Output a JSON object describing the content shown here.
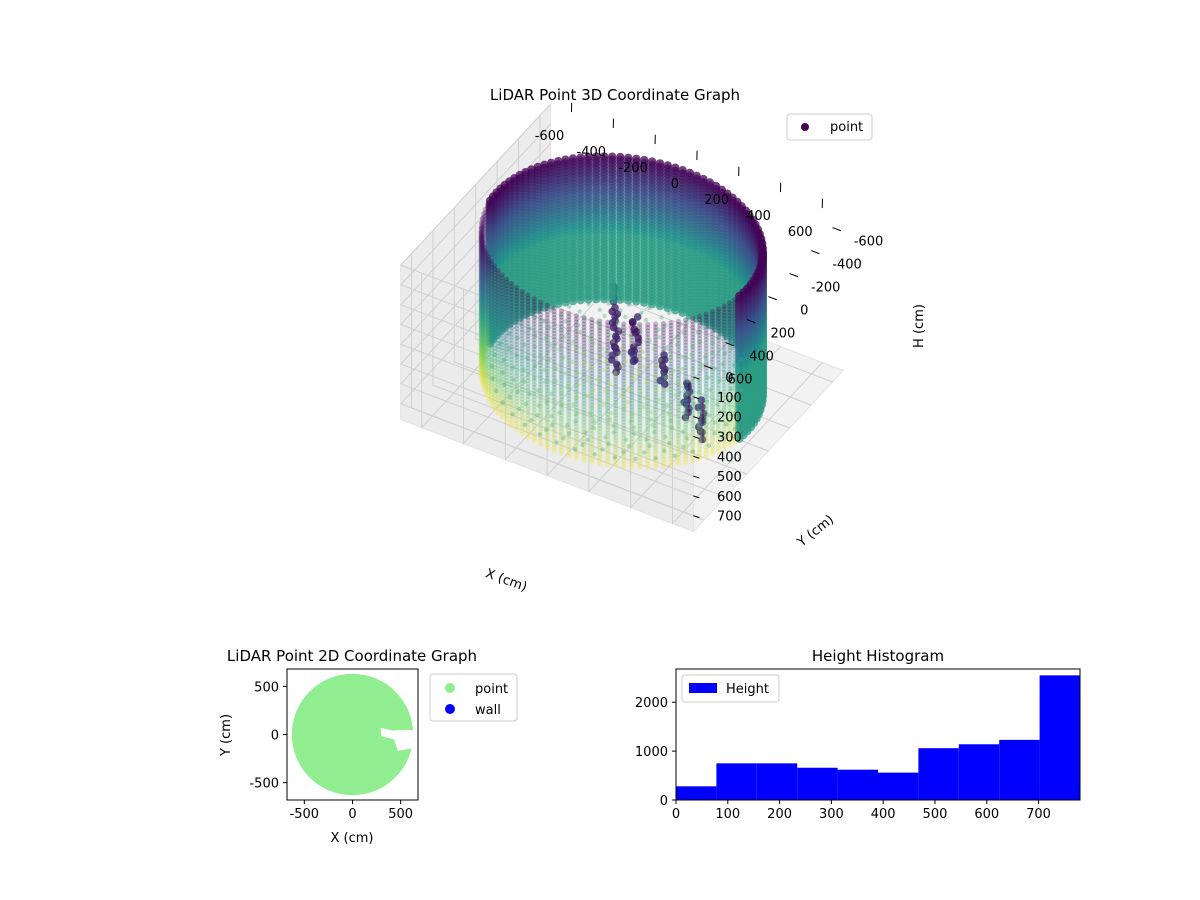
{
  "colors": {
    "viridis": [
      "#440154",
      "#3b528b",
      "#21918c",
      "#5ec962",
      "#fde725"
    ],
    "point_2d": "#90ee90",
    "wall_2d": "#0000ff",
    "hist_bar": "#0000ff",
    "pane": "#f2f2f2",
    "grid": "#d0d0d0"
  },
  "chart_data": [
    {
      "id": "scatter3d",
      "type": "scatter",
      "title": "LiDAR Point 3D Coordinate Graph",
      "xlabel": "X (cm)",
      "ylabel": "Y (cm)",
      "zlabel": "H (cm)",
      "xlim": [
        -700,
        700
      ],
      "ylim": [
        -700,
        700
      ],
      "zlim": [
        0,
        780
      ],
      "z_inverted": true,
      "xticks": [
        -600,
        -400,
        -200,
        0,
        200,
        400,
        600
      ],
      "yticks": [
        -600,
        -400,
        -200,
        0,
        200,
        400,
        600
      ],
      "zticks": [
        0,
        100,
        200,
        300,
        400,
        500,
        600,
        700
      ],
      "wall_radius": 600,
      "wall_height": [
        0,
        730
      ],
      "colormap": "viridis",
      "grid": true,
      "legend": {
        "placement": "top-right",
        "entries": [
          {
            "label": "point",
            "color": "#440154"
          }
        ]
      },
      "features": [
        {
          "x": 80,
          "y": 230,
          "h": [
            60,
            500
          ]
        },
        {
          "x": 180,
          "y": 230,
          "h": [
            180,
            420
          ]
        },
        {
          "x": 330,
          "y": 250,
          "h": [
            300,
            460
          ]
        },
        {
          "x": 440,
          "y": 260,
          "h": [
            380,
            560
          ]
        },
        {
          "x": 520,
          "y": 280,
          "h": [
            440,
            620
          ]
        }
      ]
    },
    {
      "id": "scatter2d",
      "type": "scatter",
      "title": "LiDAR Point 2D Coordinate Graph",
      "xlabel": "X (cm)",
      "ylabel": "Y (cm)",
      "xlim": [
        -680,
        680
      ],
      "ylim": [
        -680,
        680
      ],
      "xticks": [
        -500,
        0,
        500
      ],
      "yticks": [
        -500,
        0,
        500
      ],
      "circle_radius": 630,
      "gap_polygon": [
        [
          640,
          40
        ],
        [
          560,
          50
        ],
        [
          420,
          40
        ],
        [
          290,
          70
        ],
        [
          300,
          -20
        ],
        [
          430,
          -50
        ],
        [
          470,
          -170
        ],
        [
          640,
          -140
        ]
      ],
      "legend": {
        "placement": "outside-right",
        "entries": [
          {
            "label": "point",
            "color": "#90ee90"
          },
          {
            "label": "wall",
            "color": "#0000ff"
          }
        ]
      }
    },
    {
      "id": "histogram",
      "type": "bar",
      "title": "Height Histogram",
      "xlabel": "",
      "ylabel": "",
      "bin_edges": [
        0,
        78,
        156,
        234,
        312,
        390,
        468,
        546,
        624,
        702,
        780
      ],
      "values": [
        280,
        750,
        750,
        660,
        620,
        560,
        1060,
        1140,
        1230,
        2550
      ],
      "xlim": [
        0,
        780
      ],
      "ylim": [
        0,
        2680
      ],
      "xticks": [
        0,
        100,
        200,
        300,
        400,
        500,
        600,
        700
      ],
      "yticks": [
        0,
        1000,
        2000
      ],
      "legend": {
        "placement": "top-left",
        "entries": [
          {
            "label": "Height",
            "color": "#0000ff"
          }
        ]
      }
    }
  ]
}
